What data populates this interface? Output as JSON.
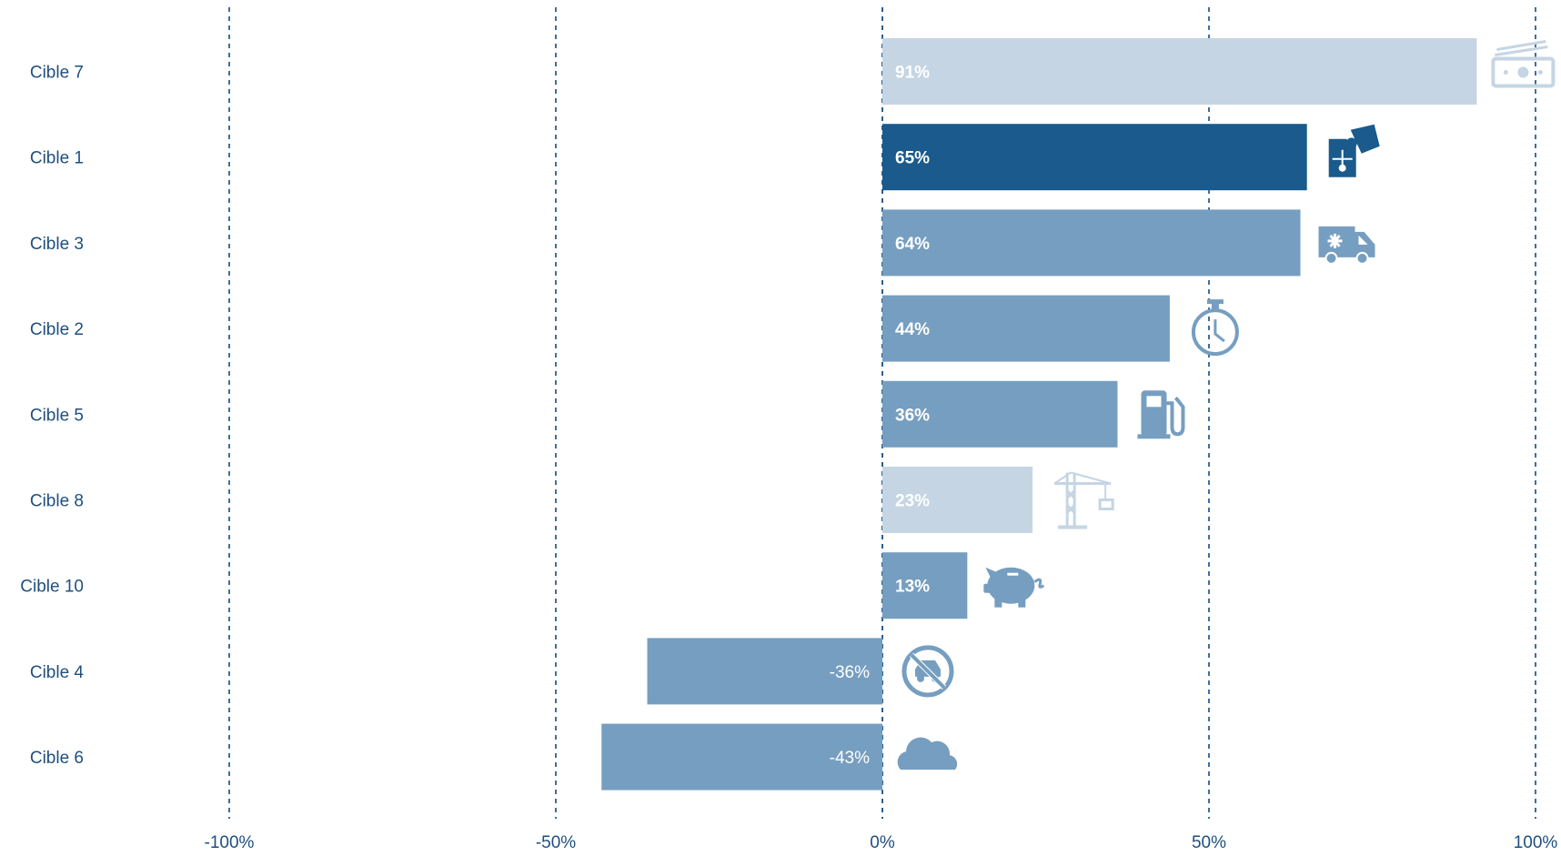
{
  "chart_data": {
    "type": "bar",
    "orientation": "horizontal",
    "categories": [
      "Cible 7",
      "Cible 1",
      "Cible 3",
      "Cible 2",
      "Cible 5",
      "Cible 8",
      "Cible 10",
      "Cible 4",
      "Cible 6"
    ],
    "values": [
      91,
      65,
      64,
      44,
      36,
      23,
      13,
      -36,
      -43
    ],
    "value_labels": [
      "91%",
      "65%",
      "64%",
      "44%",
      "36%",
      "23%",
      "13%",
      "-36%",
      "-43%"
    ],
    "bar_colors": [
      "#c5d5e3",
      "#1a5a8c",
      "#769ec0",
      "#769ec0",
      "#769ec0",
      "#c5d5e3",
      "#769ec0",
      "#769ec0",
      "#769ec0"
    ],
    "icons": [
      "money-icon",
      "puzzle-icon",
      "ambulance-icon",
      "stopwatch-icon",
      "fuel-pump-icon",
      "crane-icon",
      "piggy-bank-icon",
      "no-car-icon",
      "cloud-icon"
    ],
    "xlim": [
      -100,
      100
    ],
    "xticks": [
      -100,
      -50,
      0,
      50,
      100
    ],
    "xtick_labels": [
      "-100%",
      "-50%",
      "0%",
      "50%",
      "100%"
    ],
    "title": "",
    "xlabel": "",
    "ylabel": "",
    "grid": "vertical dashed",
    "legend": "none"
  },
  "colors": {
    "label_text": "#1f4f7e",
    "grid_line": "#3f6f9c",
    "zero_line": "#2c5f8f"
  }
}
